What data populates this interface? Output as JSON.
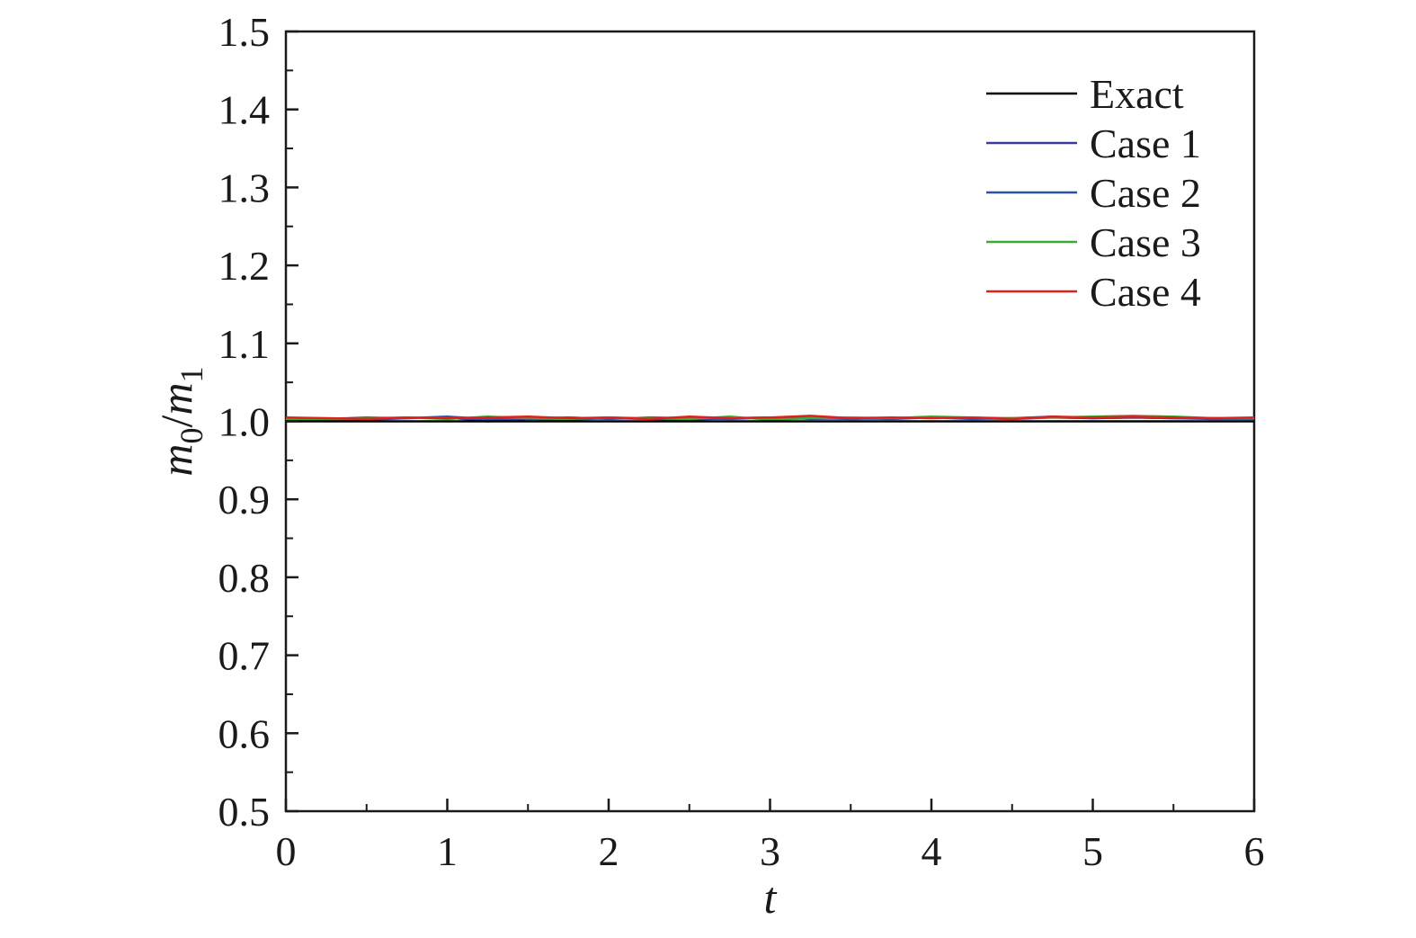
{
  "chart_data": {
    "type": "line",
    "xlabel": "t",
    "ylabel": {
      "m0": "m",
      "sub0": "0",
      "slash": "/",
      "m1": "m",
      "sub1": "1"
    },
    "xlim": [
      0,
      6
    ],
    "ylim": [
      0.5,
      1.5
    ],
    "x_ticks": [
      "0",
      "1",
      "2",
      "3",
      "4",
      "5",
      "6"
    ],
    "y_ticks": [
      "0.5",
      "0.6",
      "0.7",
      "0.8",
      "0.9",
      "1.0",
      "1.1",
      "1.2",
      "1.3",
      "1.4",
      "1.5"
    ],
    "grid": false,
    "legend_position": "top-right",
    "series": [
      {
        "name": "Exact",
        "color": "#000000",
        "x": [
          0,
          6
        ],
        "y": [
          1.0,
          1.0
        ]
      },
      {
        "name": "Case 1",
        "color": "#3b3b9a",
        "x": [
          0,
          0.25,
          0.5,
          0.75,
          1.0,
          1.25,
          1.5,
          1.75,
          2.0,
          2.25,
          2.5,
          2.75,
          3.0,
          3.25,
          3.5,
          3.75,
          4.0,
          4.25,
          4.5,
          4.75,
          5.0,
          5.25,
          5.5,
          5.75,
          6.0
        ],
        "y": [
          1.002,
          1.003,
          1.002,
          1.004,
          1.005,
          1.0,
          1.003,
          1.002,
          1.004,
          1.003,
          1.002,
          1.004,
          1.005,
          1.003,
          1.004,
          1.003,
          1.005,
          1.004,
          1.003,
          1.005,
          1.004,
          1.005,
          1.004,
          1.003,
          1.003
        ]
      },
      {
        "name": "Case 2",
        "color": "#2a52a8",
        "x": [
          0,
          0.25,
          0.5,
          0.75,
          1.0,
          1.25,
          1.5,
          1.75,
          2.0,
          2.25,
          2.5,
          2.75,
          3.0,
          3.25,
          3.5,
          3.75,
          4.0,
          4.25,
          4.5,
          4.75,
          5.0,
          5.25,
          5.5,
          5.75,
          6.0
        ],
        "y": [
          1.004,
          1.003,
          1.005,
          1.004,
          1.006,
          1.003,
          1.004,
          1.005,
          1.003,
          1.005,
          1.004,
          1.003,
          1.005,
          1.004,
          1.003,
          1.004,
          1.005,
          1.003,
          1.004,
          1.006,
          1.004,
          1.005,
          1.004,
          1.004,
          1.003
        ]
      },
      {
        "name": "Case 3",
        "color": "#3aaa35",
        "x": [
          0,
          0.25,
          0.5,
          0.75,
          1.0,
          1.25,
          1.5,
          1.75,
          2.0,
          2.25,
          2.5,
          2.75,
          3.0,
          3.25,
          3.5,
          3.75,
          4.0,
          4.25,
          4.5,
          4.75,
          5.0,
          5.25,
          5.5,
          5.75,
          6.0
        ],
        "y": [
          1.003,
          1.002,
          1.004,
          1.005,
          1.003,
          1.006,
          1.004,
          1.003,
          1.005,
          1.004,
          1.003,
          1.006,
          1.002,
          1.004,
          1.005,
          1.004,
          1.006,
          1.005,
          1.004,
          1.005,
          1.006,
          1.007,
          1.006,
          1.004,
          1.004
        ]
      },
      {
        "name": "Case 4",
        "color": "#e0201b",
        "x": [
          0,
          0.25,
          0.5,
          0.75,
          1.0,
          1.25,
          1.5,
          1.75,
          2.0,
          2.25,
          2.5,
          2.75,
          3.0,
          3.25,
          3.5,
          3.75,
          4.0,
          4.25,
          4.5,
          4.75,
          5.0,
          5.25,
          5.5,
          5.75,
          6.0
        ],
        "y": [
          1.005,
          1.004,
          1.003,
          1.005,
          1.004,
          1.005,
          1.006,
          1.004,
          1.005,
          1.003,
          1.006,
          1.004,
          1.005,
          1.007,
          1.004,
          1.005,
          1.004,
          1.005,
          1.003,
          1.006,
          1.005,
          1.006,
          1.005,
          1.004,
          1.005
        ]
      }
    ]
  }
}
